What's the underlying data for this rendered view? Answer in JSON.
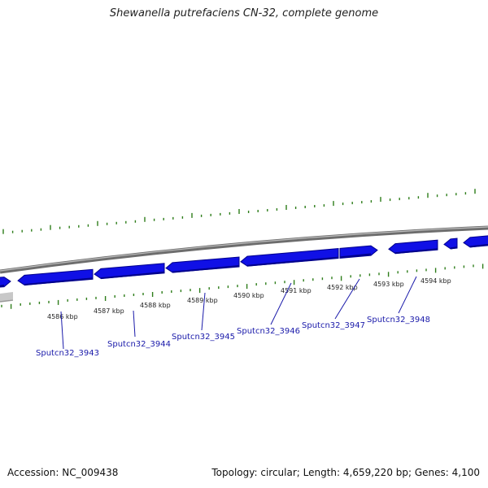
{
  "title": "Shewanella putrefaciens CN-32, complete genome",
  "footer": {
    "accession": "Accession: NC_009438",
    "summary": "Topology: circular; Length: 4,659,220 bp; Genes: 4,100"
  },
  "colors": {
    "gene_fill": "#1010e6",
    "gene_dark": "#00008c",
    "backbone": "#8a8a8a",
    "tick": "#2e7d1a",
    "label": "#1a1aaa"
  },
  "scale_ticks": [
    {
      "label": "4586 kbp"
    },
    {
      "label": "4587 kbp"
    },
    {
      "label": "4588 kbp"
    },
    {
      "label": "4589 kbp"
    },
    {
      "label": "4590 kbp"
    },
    {
      "label": "4591 kbp"
    },
    {
      "label": "4592 kbp"
    },
    {
      "label": "4593 kbp"
    },
    {
      "label": "4594 kbp"
    }
  ],
  "genes": [
    {
      "label": "Sputcn32_3943"
    },
    {
      "label": "Sputcn32_3944"
    },
    {
      "label": "Sputcn32_3945"
    },
    {
      "label": "Sputcn32_3946"
    },
    {
      "label": "Sputcn32_3947"
    },
    {
      "label": "Sputcn32_3948"
    }
  ]
}
